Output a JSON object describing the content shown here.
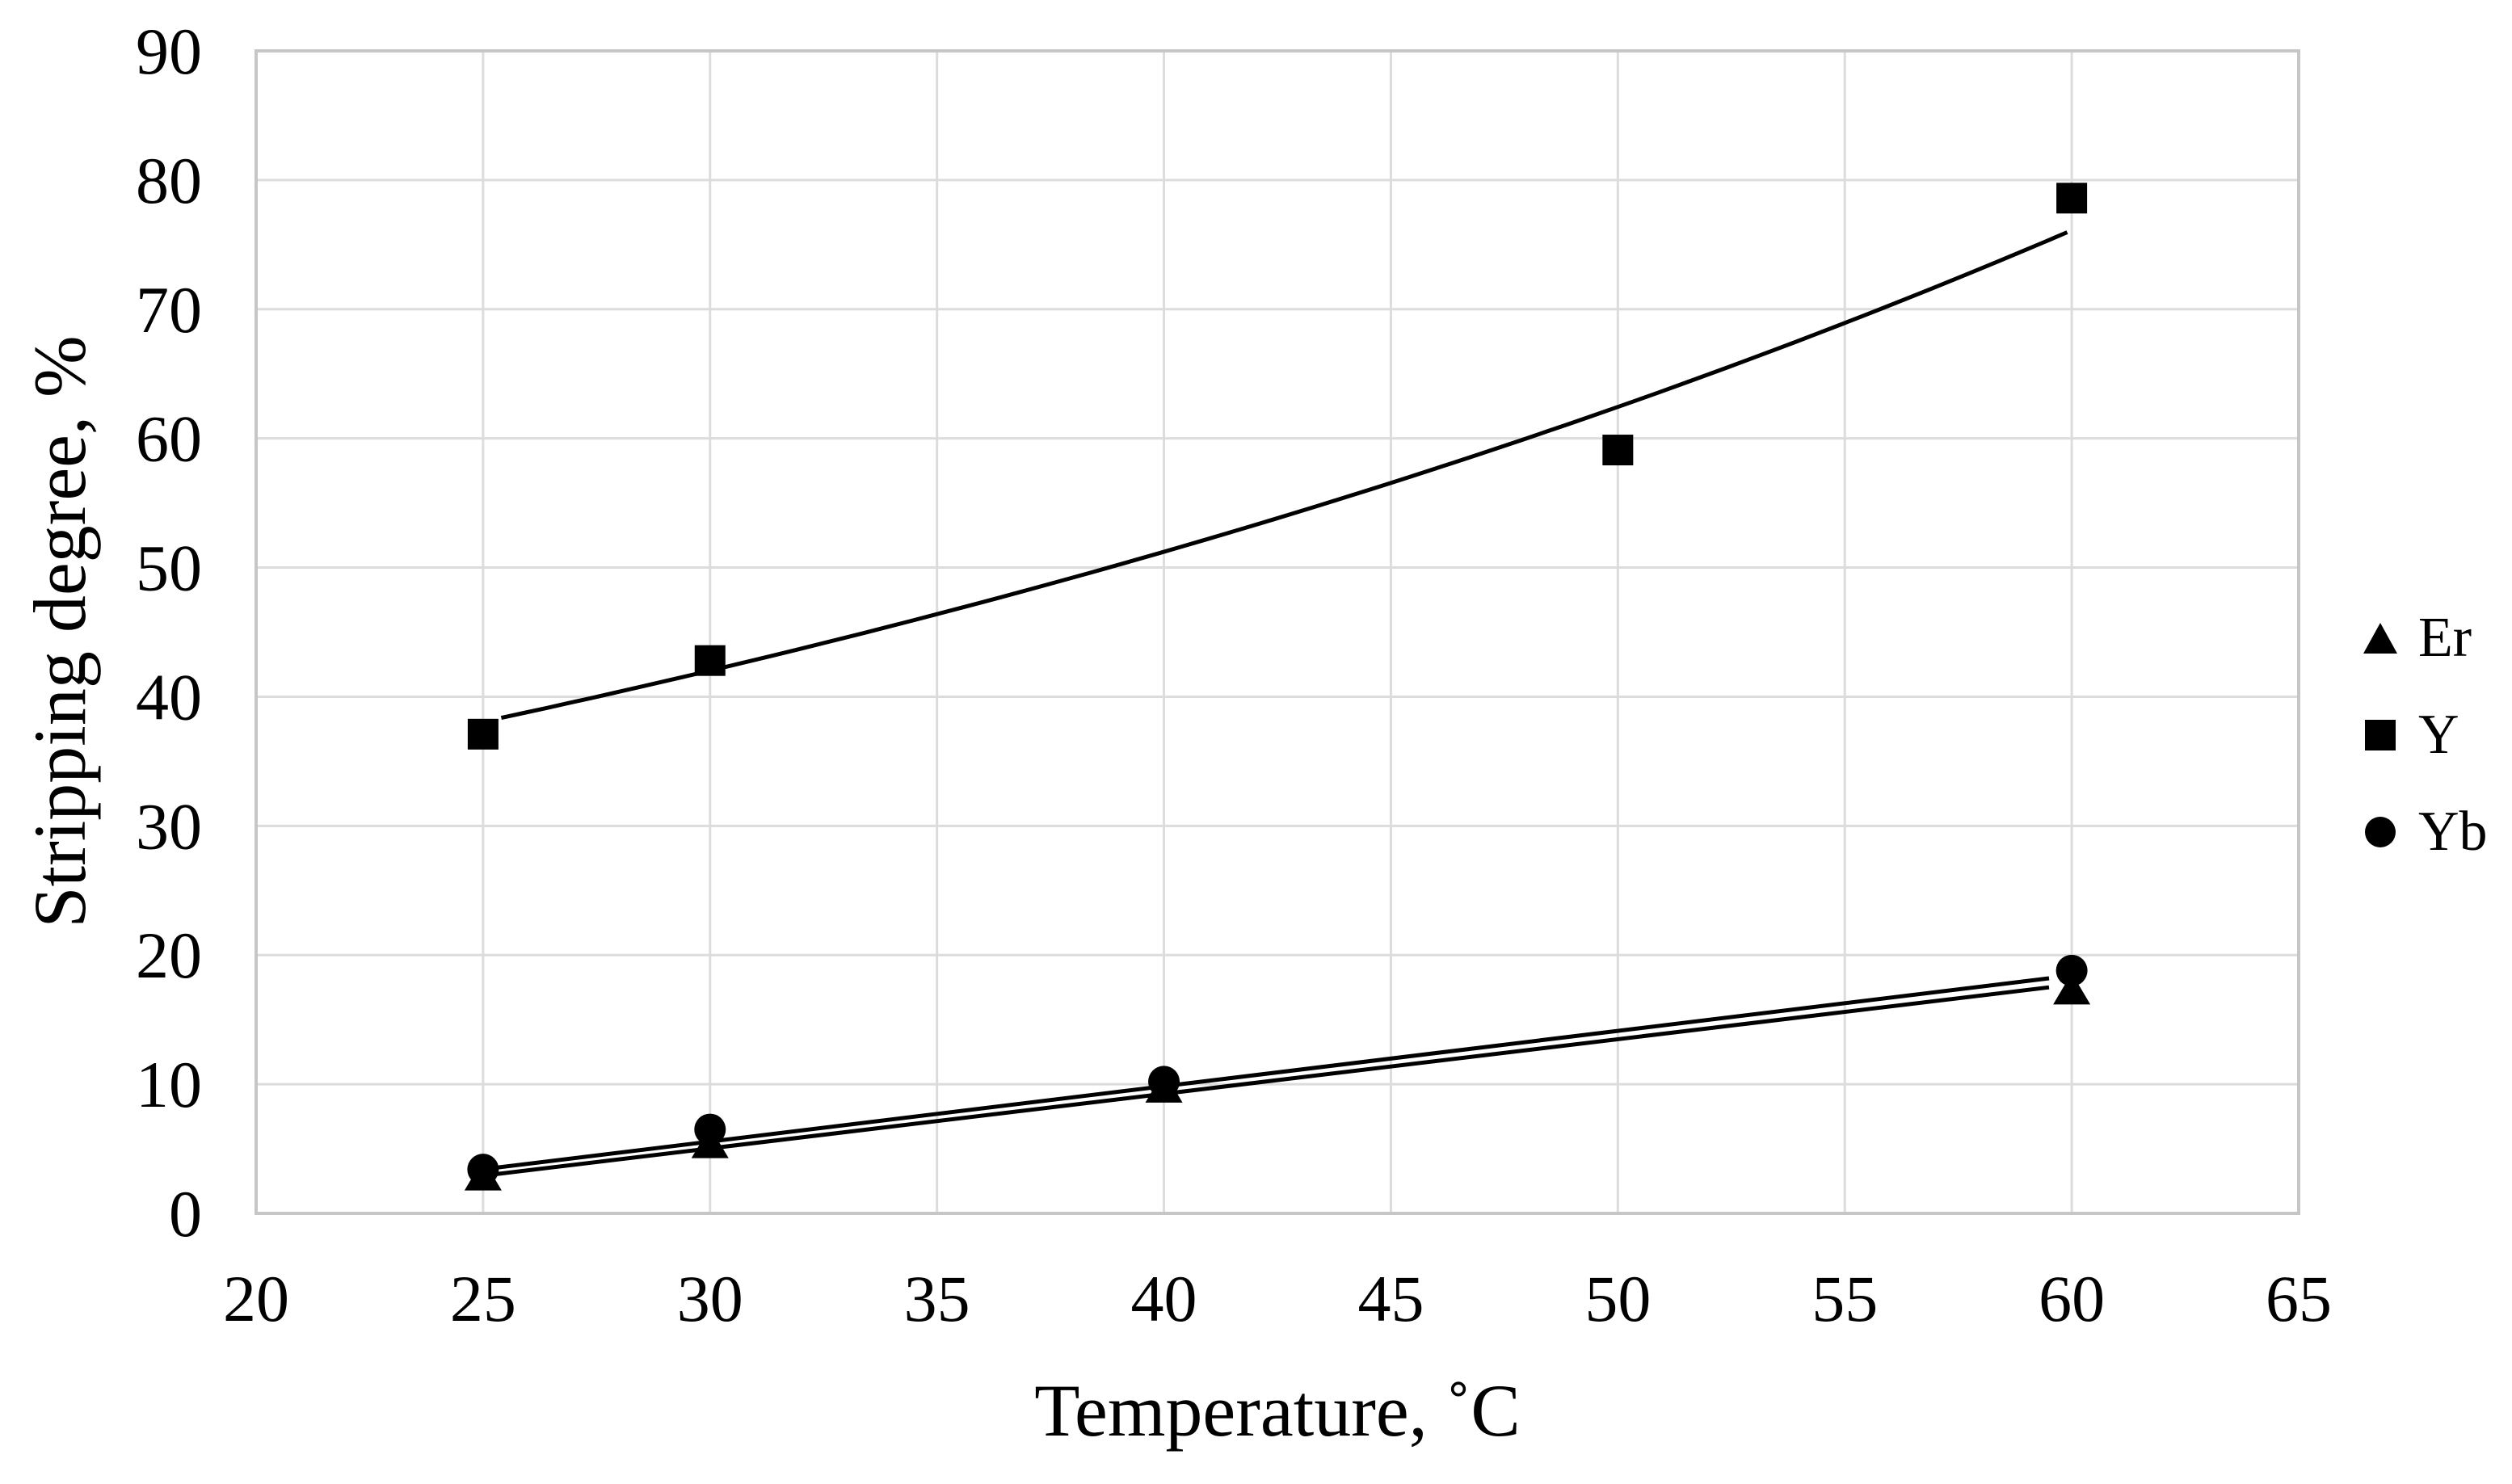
{
  "figure": {
    "background": "#ffffff"
  },
  "chart_data": {
    "type": "scatter",
    "title": "",
    "xlabel": "Temperature, ˚C",
    "ylabel": "Stripping degree, %",
    "xlim": [
      20,
      65
    ],
    "ylim": [
      0,
      90
    ],
    "x_ticks": [
      20,
      25,
      30,
      35,
      40,
      45,
      50,
      55,
      60,
      65
    ],
    "y_ticks": [
      0,
      10,
      20,
      30,
      40,
      50,
      60,
      70,
      80,
      90
    ],
    "grid": true,
    "legend_position": "right",
    "series": [
      {
        "name": "Er",
        "marker": "triangle",
        "color": "#000000",
        "points": [
          [
            25,
            2.9
          ],
          [
            30,
            5.4
          ],
          [
            40,
            9.7
          ],
          [
            60,
            17.3
          ]
        ],
        "trendline": {
          "kind": "linear",
          "x_start": 25.2,
          "x_end": 59.5,
          "y_start": 3.0,
          "y_end": 17.5
        }
      },
      {
        "name": "Y",
        "marker": "square",
        "color": "#000000",
        "points": [
          [
            25,
            37.1
          ],
          [
            30,
            42.8
          ],
          [
            50,
            59.1
          ],
          [
            60,
            78.6
          ]
        ],
        "trendline": {
          "kind": "exponential",
          "a": 23.2,
          "b": 0.0198,
          "x_start": 25.4,
          "x_end": 60
        }
      },
      {
        "name": "Yb",
        "marker": "circle",
        "color": "#000000",
        "points": [
          [
            25,
            3.4
          ],
          [
            30,
            6.5
          ],
          [
            40,
            10.2
          ],
          [
            60,
            18.8
          ]
        ],
        "trendline": {
          "kind": "linear",
          "x_start": 25.2,
          "x_end": 59.5,
          "y_start": 3.5,
          "y_end": 18.2
        }
      }
    ],
    "colors": {
      "gridline": "#dcdcdc",
      "border": "#c6c6c6",
      "marker": "#000000",
      "trendline": "#000000",
      "text": "#000000"
    }
  },
  "legend": {
    "items": [
      {
        "label": "Er",
        "marker": "triangle"
      },
      {
        "label": "Y",
        "marker": "square"
      },
      {
        "label": "Yb",
        "marker": "circle"
      }
    ]
  }
}
